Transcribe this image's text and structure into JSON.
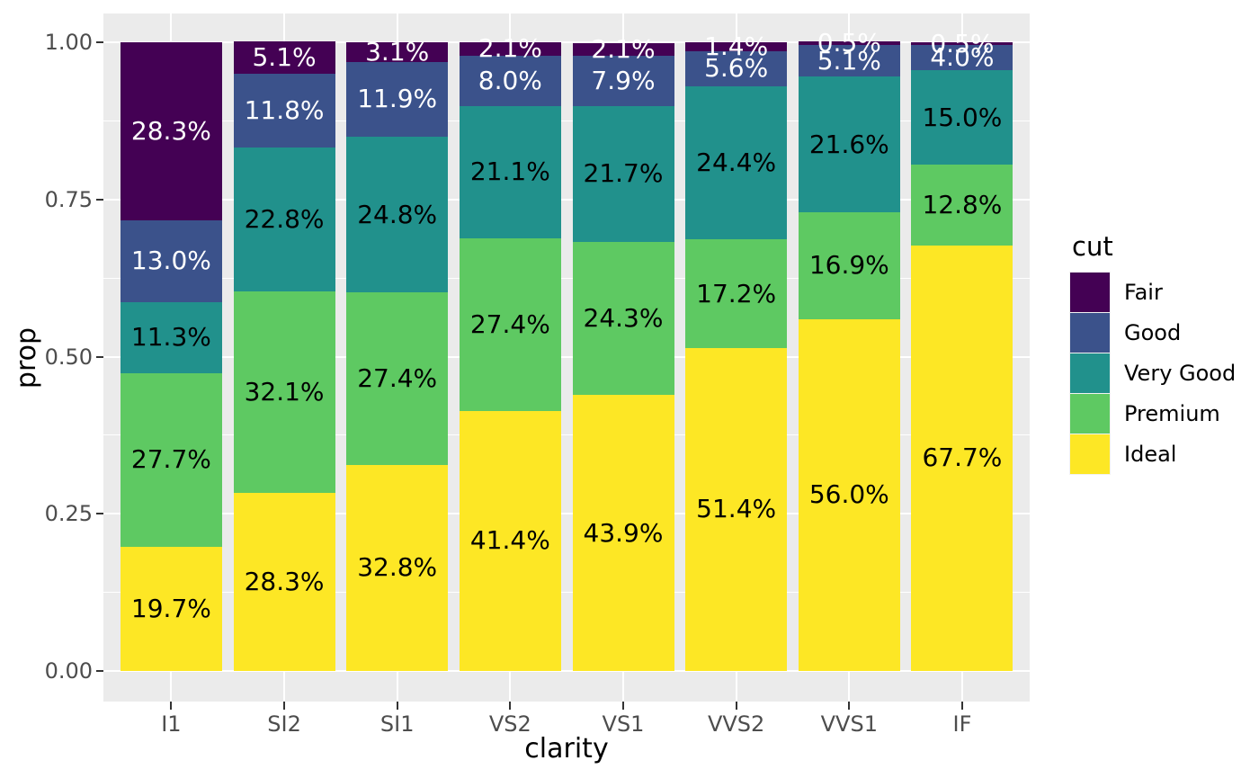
{
  "colors": {
    "figure_bg": "#FFFFFF",
    "panel_bg": "#EBEBEB",
    "gridline": "#FFFFFF",
    "tick_mark": "#333333",
    "tick_text": "#4D4D4D",
    "axis_title_text": "#000000",
    "label_light": "#FFFFFF",
    "label_dark": "#000000"
  },
  "axes": {
    "x": {
      "title": "clarity",
      "tick_labels": [
        "I1",
        "SI2",
        "SI1",
        "VS2",
        "VS1",
        "VVS2",
        "VVS1",
        "IF"
      ]
    },
    "y": {
      "title": "prop",
      "ticks": [
        {
          "label": "1.00",
          "value": 1.0
        },
        {
          "label": "0.75",
          "value": 0.75
        },
        {
          "label": "0.50",
          "value": 0.5
        },
        {
          "label": "0.25",
          "value": 0.25
        },
        {
          "label": "0.00",
          "value": 0.0
        }
      ],
      "minor_breaks": [
        0.875,
        0.625,
        0.375,
        0.125
      ]
    }
  },
  "legend": {
    "title": "cut",
    "entries": [
      {
        "label": "Fair",
        "color": "#440154"
      },
      {
        "label": "Good",
        "color": "#3B528B"
      },
      {
        "label": "Very Good",
        "color": "#21918C"
      },
      {
        "label": "Premium",
        "color": "#5EC962"
      },
      {
        "label": "Ideal",
        "color": "#FDE725"
      }
    ]
  },
  "chart_data": {
    "type": "bar",
    "subtype": "stacked-proportion-bar",
    "title": "",
    "xlabel": "clarity",
    "ylabel": "prop",
    "ylim": [
      0,
      1
    ],
    "grid": true,
    "legend_position": "right",
    "legend_title": "cut",
    "categories": [
      "I1",
      "SI2",
      "SI1",
      "VS2",
      "VS1",
      "VVS2",
      "VVS1",
      "IF"
    ],
    "stack_order_bottom_to_top": [
      "Ideal",
      "Premium",
      "Very Good",
      "Good",
      "Fair"
    ],
    "series": [
      {
        "name": "Ideal",
        "color": "#FDE725",
        "label_color": "#000000",
        "values": [
          19.7,
          28.3,
          32.8,
          41.4,
          43.9,
          51.4,
          56.0,
          67.7
        ],
        "labels": [
          "19.7%",
          "28.3%",
          "32.8%",
          "41.4%",
          "43.9%",
          "51.4%",
          "56.0%",
          "67.7%"
        ]
      },
      {
        "name": "Premium",
        "color": "#5EC962",
        "label_color": "#000000",
        "values": [
          27.7,
          32.1,
          27.4,
          27.4,
          24.3,
          17.2,
          16.9,
          12.8
        ],
        "labels": [
          "27.7%",
          "32.1%",
          "27.4%",
          "27.4%",
          "24.3%",
          "17.2%",
          "16.9%",
          "12.8%"
        ]
      },
      {
        "name": "Very Good",
        "color": "#21918C",
        "label_color": "#000000",
        "values": [
          11.3,
          22.8,
          24.8,
          21.1,
          21.7,
          24.4,
          21.6,
          15.0
        ],
        "labels": [
          "11.3%",
          "22.8%",
          "24.8%",
          "21.1%",
          "21.7%",
          "24.4%",
          "21.6%",
          "15.0%"
        ]
      },
      {
        "name": "Good",
        "color": "#3B528B",
        "label_color": "#FFFFFF",
        "values": [
          13.0,
          11.8,
          11.9,
          8.0,
          7.9,
          5.6,
          5.1,
          4.0
        ],
        "labels": [
          "13.0%",
          "11.8%",
          "11.9%",
          "8.0%",
          "7.9%",
          "5.6%",
          "5.1%",
          "4.0%"
        ]
      },
      {
        "name": "Fair",
        "color": "#440154",
        "label_color": "#FFFFFF",
        "values": [
          28.3,
          5.1,
          3.1,
          2.1,
          2.1,
          1.4,
          0.5,
          0.5
        ],
        "labels": [
          "28.3%",
          "5.1%",
          "3.1%",
          "2.1%",
          "2.1%",
          "1.4%",
          "0.5%",
          "0.5%"
        ]
      }
    ]
  }
}
